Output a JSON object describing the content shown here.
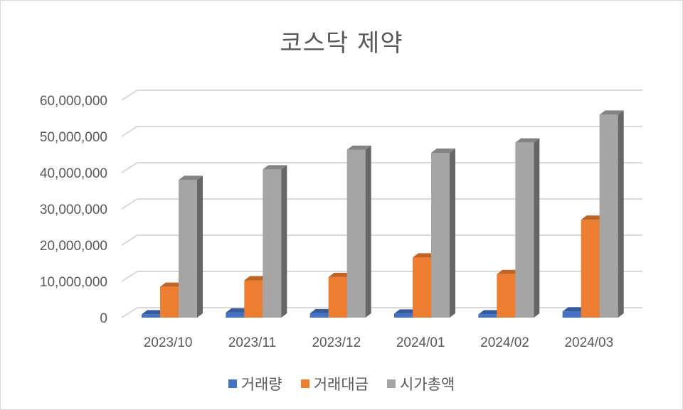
{
  "chart_data": {
    "type": "bar",
    "title": "코스닥 제약",
    "categories": [
      "2023/10",
      "2023/11",
      "2023/12",
      "2024/01",
      "2024/02",
      "2024/03"
    ],
    "ylim": [
      0,
      60000000
    ],
    "yticks": [
      "0",
      "10,000,000",
      "20,000,000",
      "30,000,000",
      "40,000,000",
      "50,000,000",
      "60,000,000"
    ],
    "grid": true,
    "legend_position": "bottom",
    "series": [
      {
        "name": "거래량",
        "color": "#4472c4",
        "values": [
          900000,
          1400000,
          1200000,
          1100000,
          900000,
          1700000
        ]
      },
      {
        "name": "거래대금",
        "color": "#ed7d31",
        "values": [
          8500000,
          10300000,
          11200000,
          16600000,
          12000000,
          27000000
        ]
      },
      {
        "name": "시가총액",
        "color": "#a5a5a5",
        "values": [
          38000000,
          40900000,
          46300000,
          45500000,
          48300000,
          56000000
        ]
      }
    ]
  }
}
